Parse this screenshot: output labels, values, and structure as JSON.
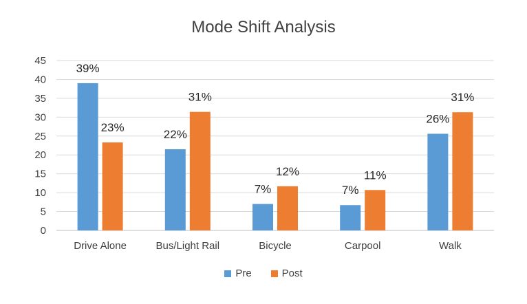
{
  "chart_data": {
    "type": "bar",
    "title": "Mode Shift Analysis",
    "categories": [
      "Drive Alone",
      "Bus/Light Rail",
      "Bicycle",
      "Carpool",
      "Walk"
    ],
    "series": [
      {
        "name": "Pre",
        "color": "#5B9BD5",
        "values": [
          39,
          21.5,
          7,
          6.7,
          25.6
        ],
        "labels": [
          "39%",
          "22%",
          "7%",
          "7%",
          "26%"
        ]
      },
      {
        "name": "Post",
        "color": "#ED7D31",
        "values": [
          23.3,
          31.4,
          11.7,
          10.7,
          31.3
        ],
        "labels": [
          "23%",
          "31%",
          "12%",
          "11%",
          "31%"
        ]
      }
    ],
    "ylim": [
      0,
      45
    ],
    "yticks": [
      "0",
      "5",
      "10",
      "15",
      "20",
      "25",
      "30",
      "35",
      "40",
      "45"
    ],
    "grid": true,
    "legend_position": "bottom"
  }
}
